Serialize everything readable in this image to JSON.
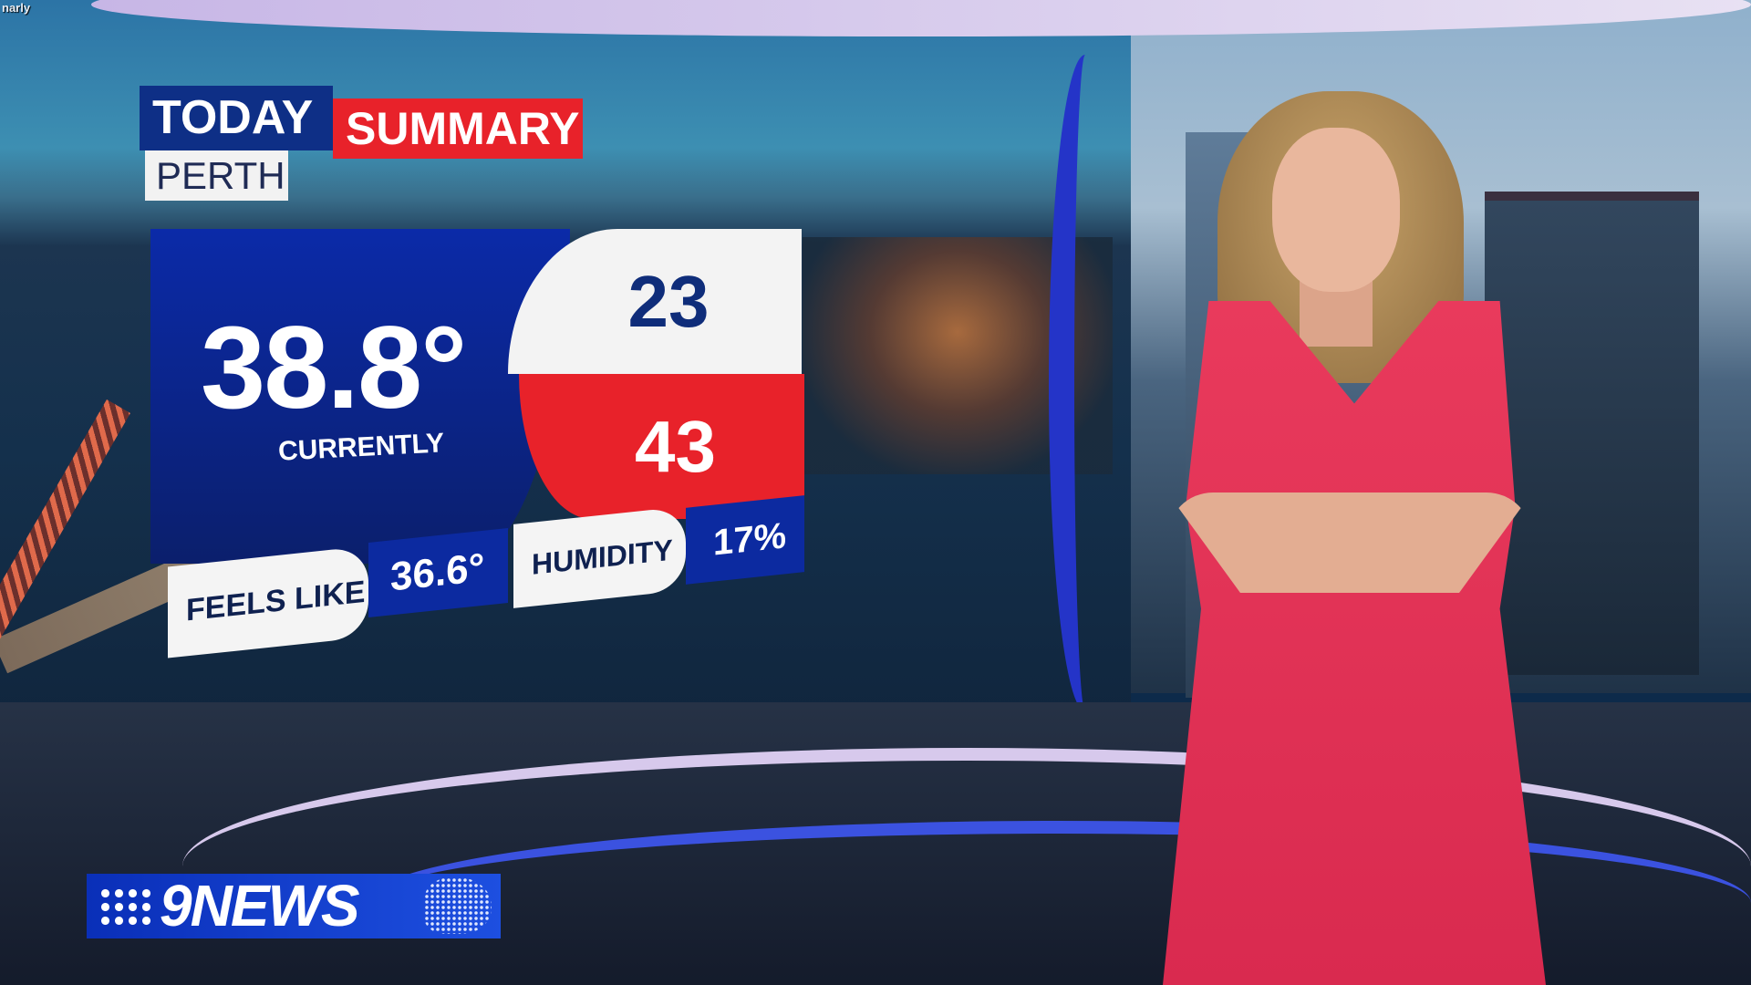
{
  "overlay_text": "narly",
  "graphic": {
    "title_left": "TODAY",
    "title_right": "SUMMARY",
    "location": "PERTH",
    "current_temp": "38.8°",
    "current_label": "CURRENTLY",
    "min_temp": "23",
    "max_temp": "43",
    "feels_like_label": "FEELS LIKE",
    "feels_like_value": "36.6°",
    "humidity_label": "HUMIDITY",
    "humidity_value": "17%"
  },
  "logo": {
    "text": "9NEWS"
  },
  "colors": {
    "blue": "#0e2f86",
    "red": "#e8222a",
    "white": "#f3f3f3",
    "dress": "#e93a5c"
  }
}
